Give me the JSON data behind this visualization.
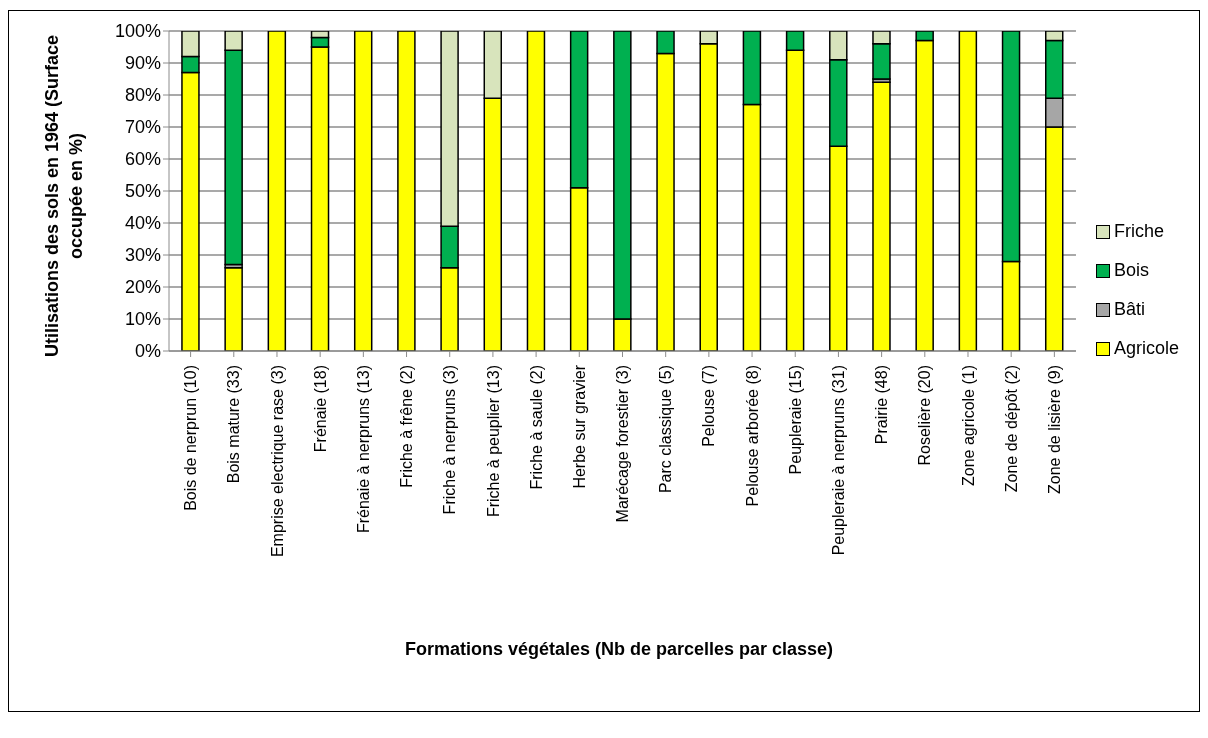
{
  "chart_data": {
    "type": "bar",
    "stacked": true,
    "xlabel": "Formations végétales (Nb de parcelles par classe)",
    "ylabel": "Utilisations des sols en 1964 (Surface occupée en %)",
    "categories": [
      "Bois de nerprun (10)",
      "Bois mature (33)",
      "Emprise electrique rase (3)",
      "Frénaie (18)",
      "Frénaie à nerpruns (13)",
      "Friche à frêne (2)",
      "Friche à nerpruns (3)",
      "Friche à peuplier (13)",
      "Friche à saule (2)",
      "Herbe sur gravier",
      "Marécage forestier (3)",
      "Parc classique (5)",
      "Pelouse (7)",
      "Pelouse arborée (8)",
      "Peupleraie (15)",
      "Peupleraie à nerpruns (31)",
      "Prairie (48)",
      "Roselière (20)",
      "Zone agricole (1)",
      "Zone de dépôt (2)",
      "Zone de lisière (9)"
    ],
    "series": [
      {
        "name": "Agricole",
        "color": "#ffff00",
        "values": [
          87,
          26,
          100,
          95,
          100,
          100,
          26,
          79,
          100,
          51,
          10,
          93,
          96,
          77,
          94,
          64,
          84,
          97,
          100,
          28,
          70
        ]
      },
      {
        "name": "Bâti",
        "color": "#a6a6a6",
        "values": [
          0,
          1,
          0,
          0,
          0,
          0,
          0,
          0,
          0,
          0,
          0,
          0,
          0,
          0,
          0,
          0,
          1,
          0,
          0,
          0,
          9
        ]
      },
      {
        "name": "Bois",
        "color": "#00b050",
        "values": [
          5,
          67,
          0,
          3,
          0,
          0,
          13,
          0,
          0,
          49,
          90,
          7,
          0,
          23,
          6,
          27,
          11,
          3,
          0,
          72,
          18
        ]
      },
      {
        "name": "Friche",
        "color": "#d8e4bc",
        "values": [
          8,
          6,
          0,
          2,
          0,
          0,
          61,
          21,
          0,
          0,
          0,
          0,
          4,
          0,
          0,
          9,
          4,
          0,
          0,
          0,
          3
        ]
      }
    ],
    "ylim": [
      0,
      100
    ],
    "yticks": [
      {
        "value": 0,
        "label": "0%"
      },
      {
        "value": 10,
        "label": "10%"
      },
      {
        "value": 20,
        "label": "20%"
      },
      {
        "value": 30,
        "label": "30%"
      },
      {
        "value": 40,
        "label": "40%"
      },
      {
        "value": 50,
        "label": "50%"
      },
      {
        "value": 60,
        "label": "60%"
      },
      {
        "value": 70,
        "label": "70%"
      },
      {
        "value": 80,
        "label": "80%"
      },
      {
        "value": 90,
        "label": "90%"
      },
      {
        "value": 100,
        "label": "100%"
      }
    ],
    "grid": "y",
    "legend": "right"
  }
}
